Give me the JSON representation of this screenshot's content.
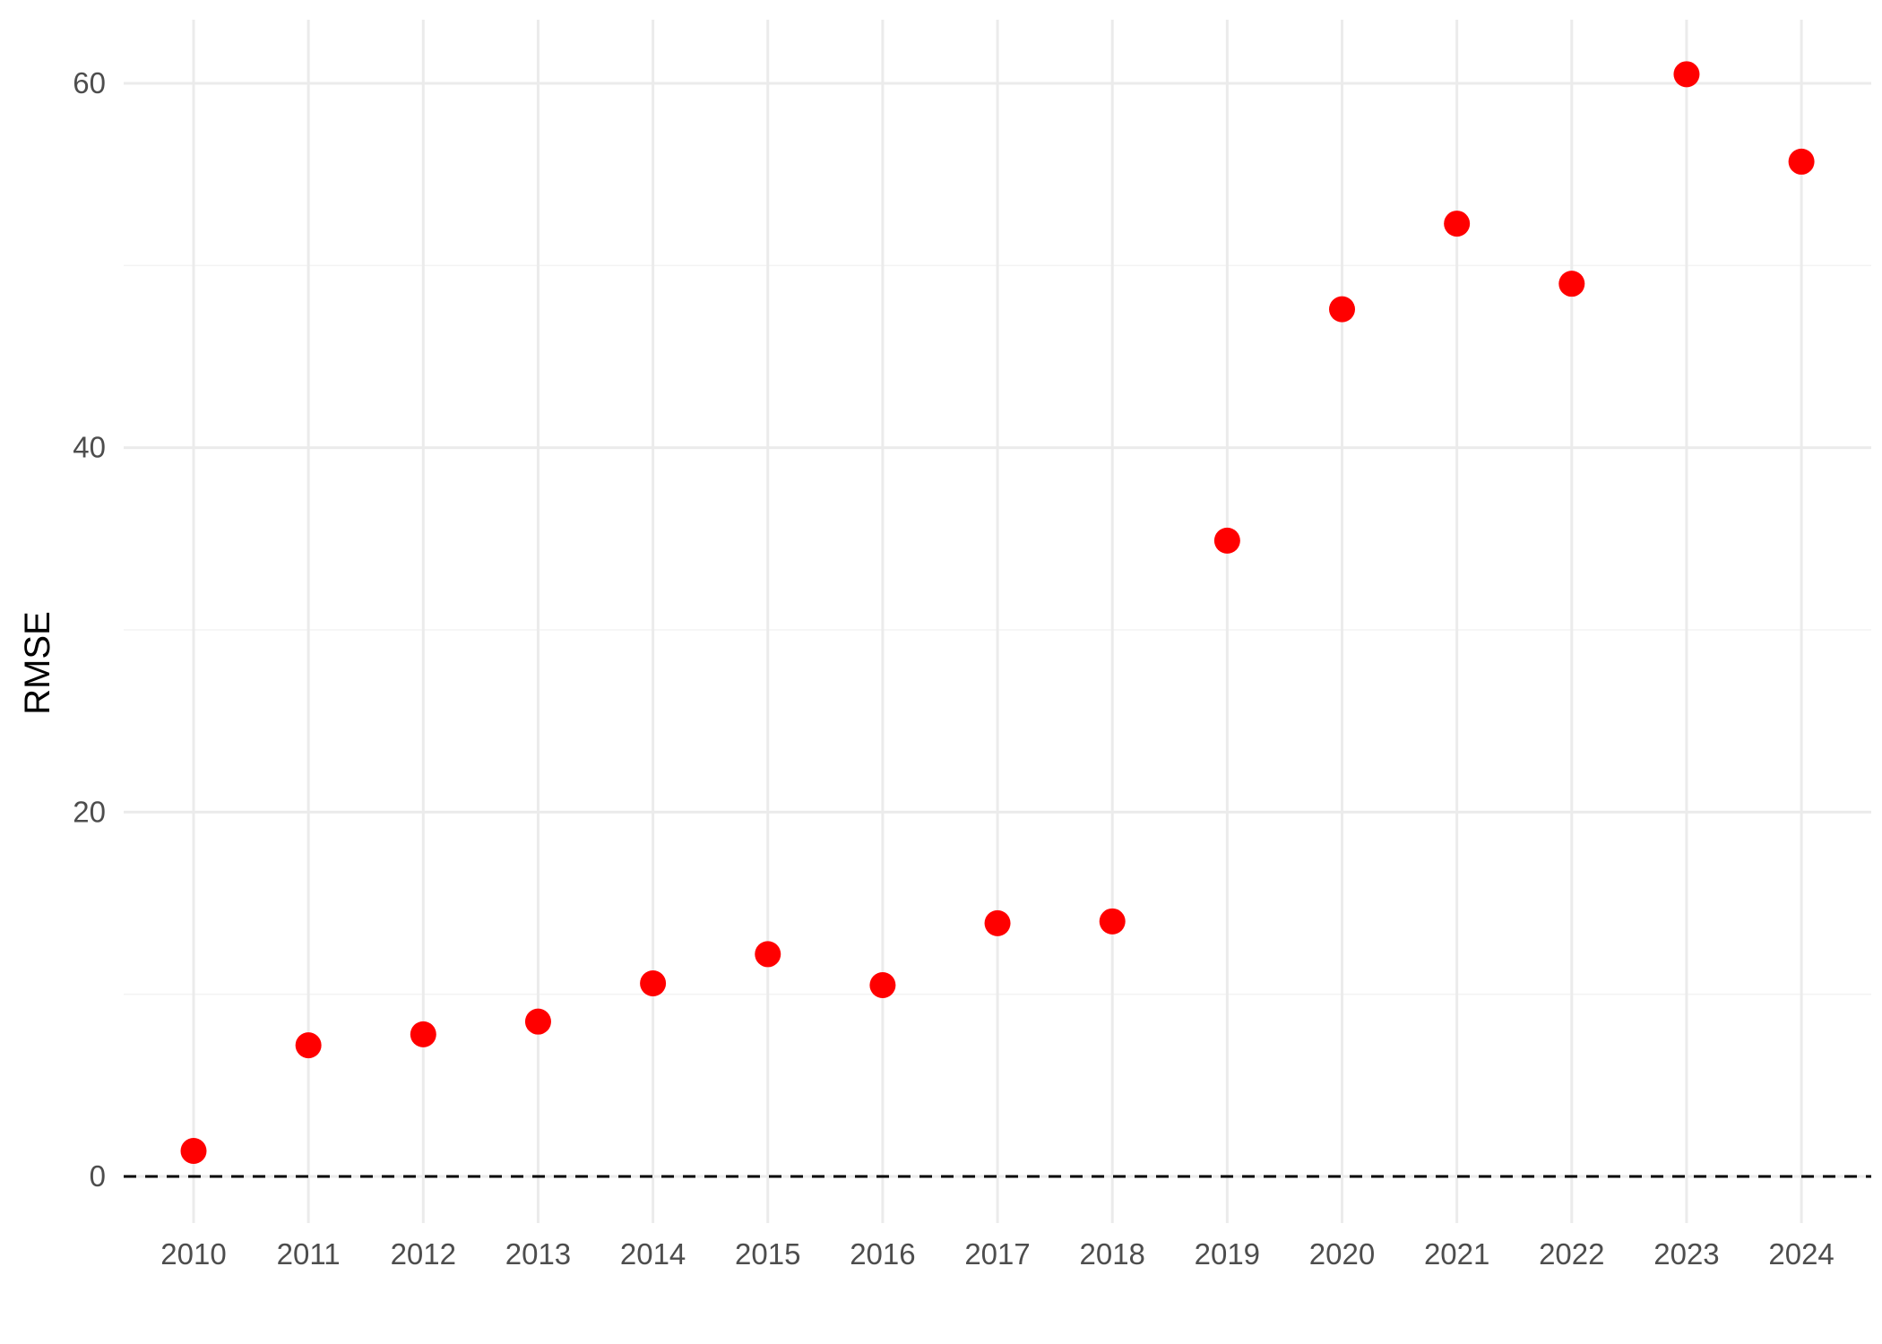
{
  "colors": {
    "point": "#ff0000",
    "grid_major": "#ebebeb",
    "grid_minor": "#f3f3f3",
    "reference_line": "#000000",
    "tick_text": "#4d4d4d",
    "axis_title_text": "#000000",
    "background": "#ffffff"
  },
  "chart_data": {
    "type": "scatter",
    "title": "",
    "xlabel": "",
    "ylabel": "RMSE",
    "categories": [
      "2010",
      "2011",
      "2012",
      "2013",
      "2014",
      "2015",
      "2016",
      "2017",
      "2018",
      "2019",
      "2020",
      "2021",
      "2022",
      "2023",
      "2024"
    ],
    "values": [
      1.4,
      7.2,
      7.8,
      8.5,
      10.6,
      12.2,
      10.5,
      13.9,
      14.0,
      34.9,
      47.6,
      52.3,
      49.0,
      60.5,
      55.7
    ],
    "ylim": [
      -2.8,
      63.5
    ],
    "yticks": [
      0,
      20,
      40,
      60
    ],
    "ytick_labels": [
      "0",
      "20",
      "40",
      "60"
    ],
    "y_minor_gridlines": [
      10,
      30,
      50
    ],
    "reference_line": {
      "y": 0,
      "style": "dashed"
    },
    "grid": true,
    "legend": "none"
  }
}
